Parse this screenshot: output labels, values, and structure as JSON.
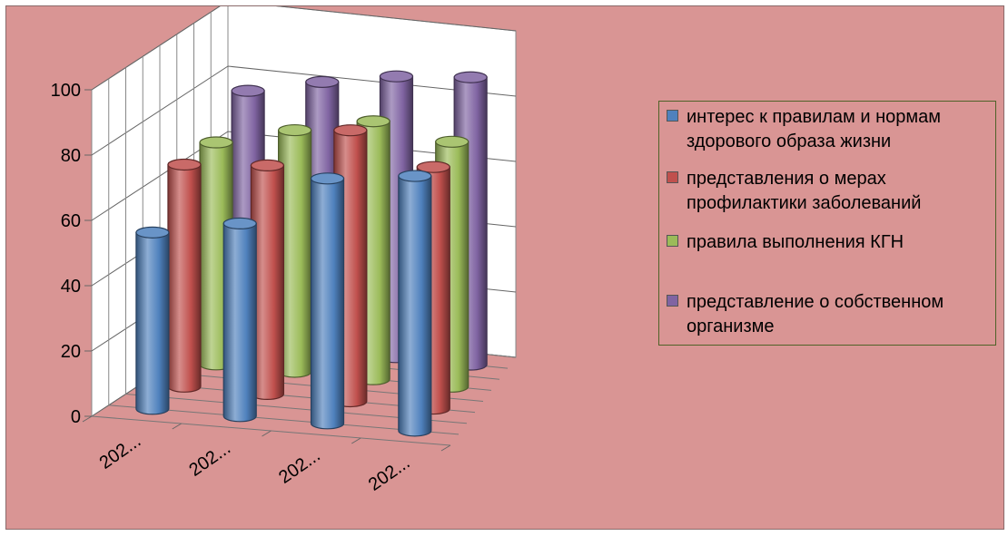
{
  "chart_data": {
    "type": "bar",
    "style": "3d-cylinder",
    "categories": [
      "202...",
      "202...",
      "202...",
      "202..."
    ],
    "ylim": [
      0,
      100
    ],
    "yticks": [
      0,
      20,
      40,
      60,
      80,
      100
    ],
    "grid": true,
    "legend_position": "right",
    "series": [
      {
        "name": "интерес к правилам и нормам здорового образа жизни",
        "color": "#4f81bd",
        "values": [
          54,
          59,
          75,
          78
        ]
      },
      {
        "name": "представления о мерах профилактики заболеваний",
        "color": "#c0504d",
        "values": [
          68,
          70,
          83,
          74
        ]
      },
      {
        "name": "правила выполнения КГН",
        "color": "#9bbb59",
        "values": [
          68,
          74,
          79,
          75
        ]
      },
      {
        "name": "представление о собственном организме",
        "color": "#8064a2",
        "values": [
          77,
          82,
          86,
          88
        ]
      }
    ]
  },
  "legend": {
    "items": [
      {
        "lines": [
          "интерес к правилам и нормам",
          "здорового образа жизни"
        ],
        "color": "#4f81bd"
      },
      {
        "lines": [
          "представления о мерах",
          "профилактики заболеваний"
        ],
        "color": "#c0504d"
      },
      {
        "lines": [
          "правила выполнения КГН"
        ],
        "color": "#9bbb59"
      },
      {
        "lines": [
          "представление о собственном",
          "организме"
        ],
        "color": "#8064a2"
      }
    ]
  }
}
